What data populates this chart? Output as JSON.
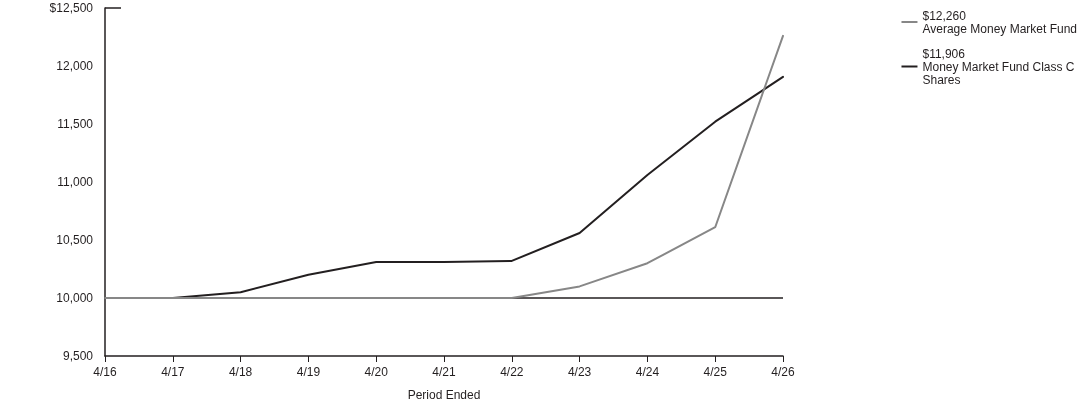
{
  "chart_data": {
    "type": "line",
    "xlabel": "Period Ended",
    "categories": [
      "4/16",
      "4/17",
      "4/18",
      "4/19",
      "4/20",
      "4/21",
      "4/22",
      "4/23",
      "4/24",
      "4/25",
      "4/26"
    ],
    "series": [
      {
        "name": "Average Money Market Fund",
        "color": "#878787",
        "values": [
          10000,
          10000,
          10000,
          10000,
          10000,
          10000,
          10000,
          10100,
          10300,
          10610,
          12260
        ]
      },
      {
        "name": "Money Market Fund Class C Shares",
        "color": "#231f20",
        "values": [
          10000,
          10000,
          10050,
          10200,
          10310,
          10310,
          10320,
          10560,
          11060,
          11520,
          11906
        ]
      }
    ],
    "annotations": [
      "$12,260",
      "$11,906"
    ],
    "ylim": [
      9500,
      12500
    ],
    "yticks": [
      {
        "value": 9500,
        "label": "9,500"
      },
      {
        "value": 10000,
        "label": "10,000"
      },
      {
        "value": 10500,
        "label": "10,500"
      },
      {
        "value": 11000,
        "label": "11,000"
      },
      {
        "value": 11500,
        "label": "11,500"
      },
      {
        "value": 12000,
        "label": "12,000"
      },
      {
        "value": 12500,
        "label": "$12,500"
      }
    ],
    "ref_lines": [
      {
        "axis": "y",
        "value": 10000,
        "color": "#231f20"
      }
    ],
    "grid": false,
    "legend": "top right",
    "marker": "none",
    "line_style": "solid"
  }
}
